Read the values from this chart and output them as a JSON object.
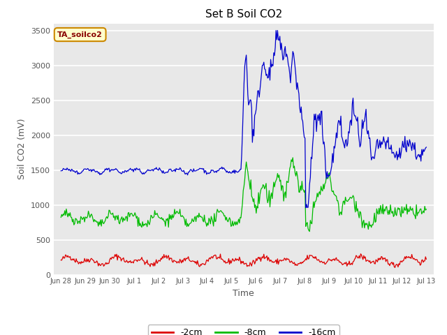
{
  "title": "Set B Soil CO2",
  "xlabel": "Time",
  "ylabel": "Soil CO2 (mV)",
  "ylim": [
    0,
    3600
  ],
  "background_color": "#ffffff",
  "plot_bg_color": "#e8e8e8",
  "legend_label": "TA_soilco2",
  "series": [
    {
      "label": "-2cm",
      "color": "#dd0000"
    },
    {
      "label": "-8cm",
      "color": "#00bb00"
    },
    {
      "label": "-16cm",
      "color": "#0000cc"
    }
  ],
  "yticks": [
    0,
    500,
    1000,
    1500,
    2000,
    2500,
    3000,
    3500
  ],
  "xtick_labels": [
    "Jun 28",
    "Jun 29",
    "Jun 30",
    "Jul 1",
    "Jul 2",
    "Jul 3",
    "Jul 4",
    "Jul 5",
    "Jul 6",
    "Jul 7",
    "Jul 8",
    "Jul 9",
    "Jul 10",
    "Jul 11",
    "Jul 12",
    "Jul 13"
  ]
}
